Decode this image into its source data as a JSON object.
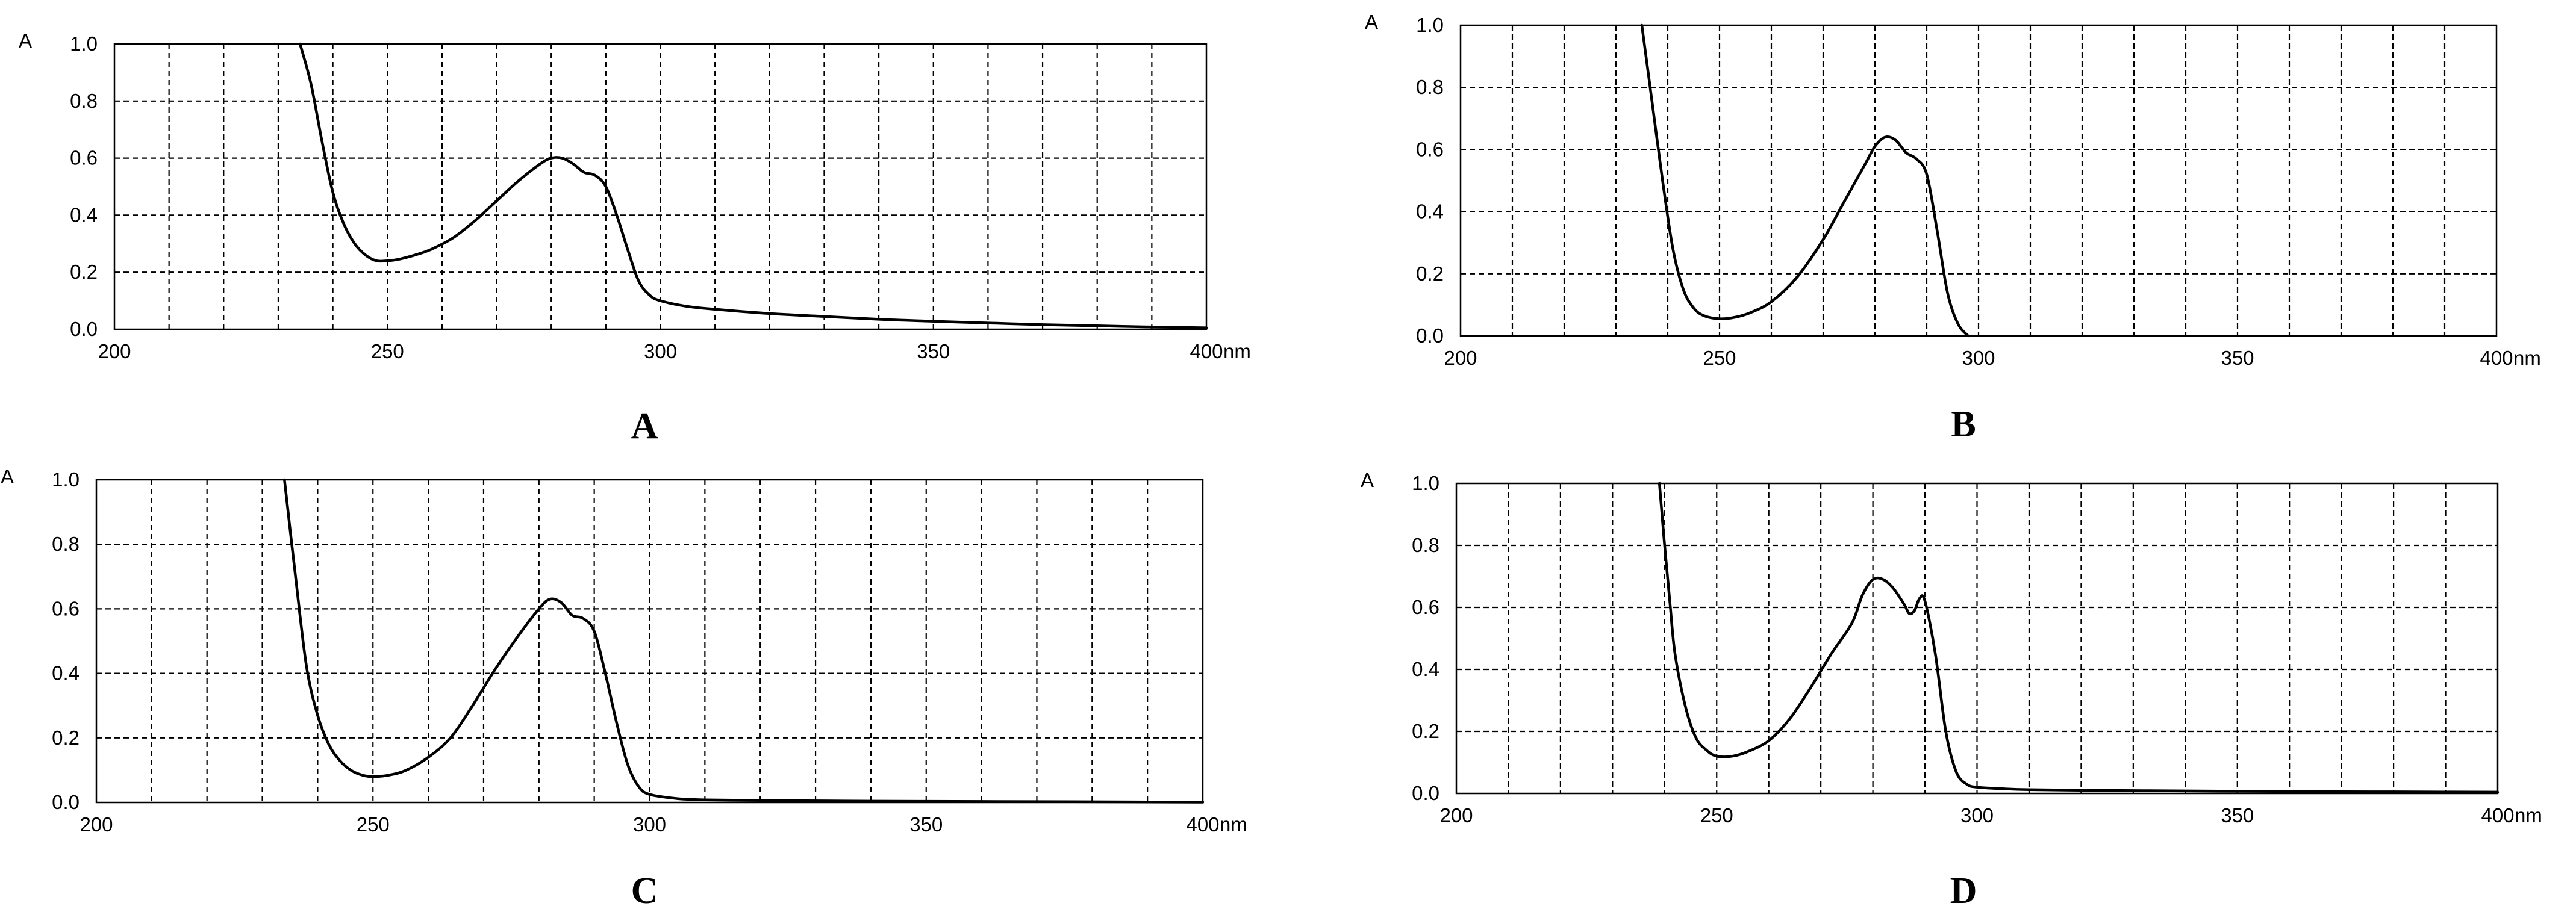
{
  "chart_data": [
    {
      "panel": "A",
      "type": "line",
      "ylabel": "A",
      "xunit": "nm",
      "xlim": [
        200,
        400
      ],
      "ylim": [
        0,
        1
      ],
      "xticks": [
        200,
        250,
        300,
        350,
        400
      ],
      "yticks": [
        0.0,
        0.2,
        0.4,
        0.6,
        0.8,
        1.0
      ],
      "grid": true,
      "x": [
        234,
        236,
        238,
        240,
        242,
        244,
        246,
        248,
        250,
        252,
        255,
        258,
        262,
        266,
        270,
        274,
        278,
        280,
        282,
        284,
        286,
        288,
        290,
        292,
        294,
        296,
        298,
        300,
        305,
        310,
        320,
        330,
        340,
        350,
        360,
        370,
        380,
        390,
        400
      ],
      "y": [
        1.0,
        0.86,
        0.66,
        0.48,
        0.37,
        0.3,
        0.26,
        0.24,
        0.24,
        0.245,
        0.26,
        0.28,
        0.32,
        0.38,
        0.45,
        0.52,
        0.58,
        0.6,
        0.6,
        0.58,
        0.55,
        0.54,
        0.5,
        0.4,
        0.28,
        0.17,
        0.12,
        0.1,
        0.08,
        0.07,
        0.055,
        0.045,
        0.035,
        0.028,
        0.022,
        0.016,
        0.012,
        0.008,
        0.005
      ]
    },
    {
      "panel": "B",
      "type": "line",
      "ylabel": "A",
      "xunit": "nm",
      "xlim": [
        200,
        400
      ],
      "ylim": [
        0,
        1
      ],
      "xticks": [
        200,
        250,
        300,
        350,
        400
      ],
      "yticks": [
        0.0,
        0.2,
        0.4,
        0.6,
        0.8,
        1.0
      ],
      "grid": true,
      "x": [
        235,
        237,
        239,
        241,
        243,
        245,
        247,
        250,
        253,
        256,
        260,
        265,
        270,
        274,
        278,
        280,
        282,
        284,
        286,
        288,
        290,
        292,
        294,
        296,
        298
      ],
      "y": [
        1.0,
        0.75,
        0.5,
        0.28,
        0.15,
        0.09,
        0.065,
        0.055,
        0.06,
        0.075,
        0.11,
        0.19,
        0.31,
        0.43,
        0.55,
        0.61,
        0.64,
        0.63,
        0.59,
        0.57,
        0.52,
        0.34,
        0.14,
        0.04,
        0.0
      ]
    },
    {
      "panel": "C",
      "type": "line",
      "ylabel": "A",
      "xunit": "nm",
      "xlim": [
        200,
        400
      ],
      "ylim": [
        0,
        1
      ],
      "xticks": [
        200,
        250,
        300,
        350,
        400
      ],
      "yticks": [
        0.0,
        0.2,
        0.4,
        0.6,
        0.8,
        1.0
      ],
      "grid": true,
      "x": [
        234,
        236,
        238,
        240,
        242,
        244,
        246,
        248,
        250,
        253,
        256,
        260,
        264,
        268,
        272,
        276,
        280,
        282,
        284,
        286,
        288,
        290,
        292,
        294,
        296,
        298,
        300,
        305,
        310,
        320,
        340,
        360,
        380,
        400
      ],
      "y": [
        1.0,
        0.7,
        0.42,
        0.27,
        0.18,
        0.13,
        0.1,
        0.085,
        0.08,
        0.085,
        0.1,
        0.14,
        0.2,
        0.3,
        0.41,
        0.51,
        0.6,
        0.63,
        0.62,
        0.58,
        0.57,
        0.53,
        0.4,
        0.25,
        0.12,
        0.05,
        0.025,
        0.012,
        0.008,
        0.006,
        0.004,
        0.003,
        0.002,
        0.001
      ]
    },
    {
      "panel": "D",
      "type": "line",
      "ylabel": "A",
      "xunit": "nm",
      "xlim": [
        200,
        400
      ],
      "ylim": [
        0,
        1
      ],
      "xticks": [
        200,
        250,
        300,
        350,
        400
      ],
      "yticks": [
        0.0,
        0.2,
        0.4,
        0.6,
        0.8,
        1.0
      ],
      "grid": true,
      "x": [
        239,
        240,
        241,
        242,
        244,
        246,
        248,
        250,
        253,
        256,
        260,
        264,
        268,
        272,
        276,
        278,
        280,
        282,
        284,
        286,
        287,
        288,
        289,
        290,
        292,
        294,
        296,
        298,
        300,
        305,
        310,
        320,
        340,
        360,
        380,
        400
      ],
      "y": [
        1.0,
        0.8,
        0.62,
        0.45,
        0.28,
        0.18,
        0.14,
        0.12,
        0.12,
        0.135,
        0.17,
        0.24,
        0.34,
        0.45,
        0.55,
        0.64,
        0.69,
        0.69,
        0.66,
        0.61,
        0.58,
        0.59,
        0.63,
        0.62,
        0.45,
        0.2,
        0.07,
        0.03,
        0.02,
        0.015,
        0.012,
        0.01,
        0.008,
        0.006,
        0.005,
        0.004
      ]
    }
  ]
}
